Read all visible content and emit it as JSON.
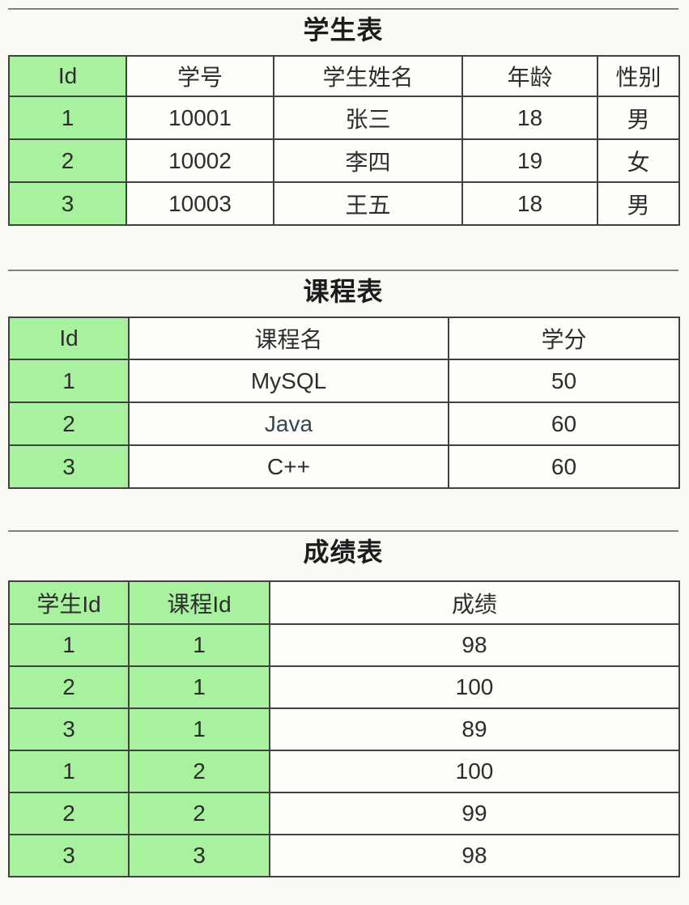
{
  "theme": {
    "background": "#fbf9f4",
    "card_background": "#fefdfa",
    "header_green": "#a8f19f",
    "table_border": "#414141",
    "section_rule": "#7f7f7f",
    "text": "#2d2d2d",
    "title_text": "#1c1c1c"
  },
  "tables": [
    {
      "id": "students",
      "title": "学生表",
      "columns": [
        "Id",
        "学号",
        "学生姓名",
        "年龄",
        "性别"
      ],
      "rows": [
        [
          "1",
          "10001",
          "张三",
          "18",
          "男"
        ],
        [
          "2",
          "10002",
          "李四",
          "19",
          "女"
        ],
        [
          "3",
          "10003",
          "王五",
          "18",
          "男"
        ]
      ],
      "green_columns": [
        0
      ],
      "special_cells": []
    },
    {
      "id": "courses",
      "title": "课程表",
      "columns": [
        "Id",
        "课程名",
        "学分"
      ],
      "rows": [
        [
          "1",
          "MySQL",
          "50"
        ],
        [
          "2",
          "Java",
          "60"
        ],
        [
          "3",
          "C++",
          "60"
        ]
      ],
      "green_columns": [
        0
      ],
      "special_cells": [
        {
          "row": 1,
          "col": 1,
          "color": "#35474f"
        }
      ]
    },
    {
      "id": "scores",
      "title": "成绩表",
      "columns": [
        "学生Id",
        "课程Id",
        "成绩"
      ],
      "rows": [
        [
          "1",
          "1",
          "98"
        ],
        [
          "2",
          "1",
          "100"
        ],
        [
          "3",
          "1",
          "89"
        ],
        [
          "1",
          "2",
          "100"
        ],
        [
          "2",
          "2",
          "99"
        ],
        [
          "3",
          "3",
          "98"
        ]
      ],
      "green_columns": [
        0,
        1
      ],
      "special_cells": []
    }
  ]
}
